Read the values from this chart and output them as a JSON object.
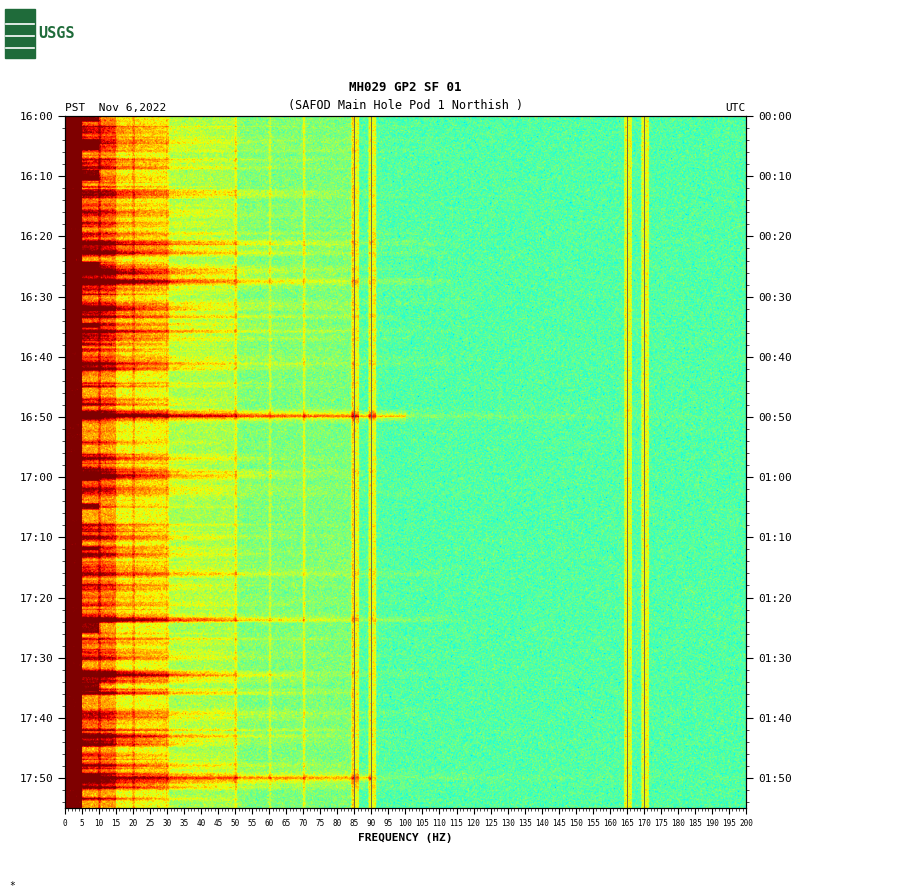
{
  "title_line1": "MH029 GP2 SF 01",
  "title_line2": "(SAFOD Main Hole Pod 1 Northish )",
  "left_label": "PST  Nov 6,2022",
  "right_label": "UTC",
  "xlabel": "FREQUENCY (HZ)",
  "freq_ticks": [
    0,
    5,
    10,
    15,
    20,
    25,
    30,
    35,
    40,
    45,
    50,
    55,
    60,
    65,
    70,
    75,
    80,
    85,
    90,
    95,
    100,
    105,
    110,
    115,
    120,
    125,
    130,
    135,
    140,
    145,
    150,
    155,
    160,
    165,
    170,
    175,
    180,
    185,
    190,
    195,
    200
  ],
  "pst_yticks": [
    "16:00",
    "16:10",
    "16:20",
    "16:30",
    "16:40",
    "16:50",
    "17:00",
    "17:10",
    "17:20",
    "17:30",
    "17:40",
    "17:50"
  ],
  "utc_yticks": [
    "00:00",
    "00:10",
    "00:20",
    "00:30",
    "00:40",
    "00:50",
    "01:00",
    "01:10",
    "01:20",
    "01:30",
    "01:40",
    "01:50"
  ],
  "colormap": "jet",
  "background_color": "#ffffff",
  "freq_max": 200,
  "freq_min": 0,
  "n_time": 1140,
  "n_freq": 800,
  "vertical_lines_freq": [
    85,
    90,
    165,
    170
  ],
  "fig_width": 9.02,
  "fig_height": 8.93,
  "vmin": -160,
  "vmax": -60,
  "noise_base": -140,
  "noise_std": 6,
  "bg_level": -115
}
